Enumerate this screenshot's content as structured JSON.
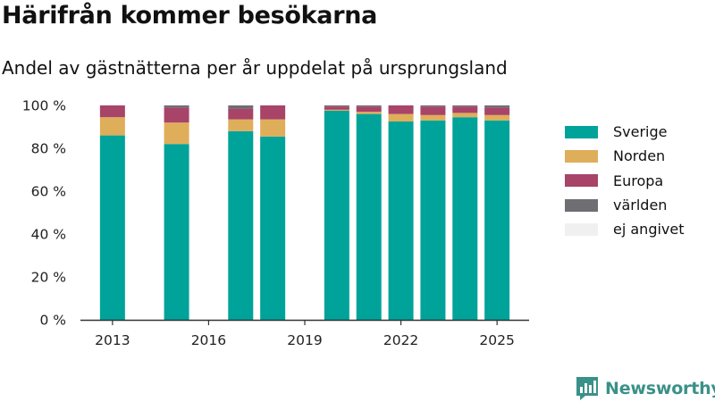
{
  "title": "Härifrån kommer besökarna",
  "subtitle": "Andel av gästnätterna per år uppdelat på ursprungsland",
  "brand": "Newsworthy",
  "colors": {
    "Sverige": "#00a39a",
    "Norden": "#dfae5a",
    "Europa": "#a84468",
    "världen": "#6e6e73",
    "ej angivet": "#f0f0f0"
  },
  "chart_data": {
    "type": "bar",
    "stacked": true,
    "categories": [
      "2013",
      "2015",
      "2017",
      "2018",
      "2020",
      "2021",
      "2022",
      "2023",
      "2024",
      "2025"
    ],
    "series": [
      {
        "name": "Sverige",
        "values": [
          86,
          82,
          88,
          85.5,
          97.5,
          96,
          92.5,
          93,
          94.5,
          93
        ]
      },
      {
        "name": "Norden",
        "values": [
          8.5,
          10,
          5.5,
          8,
          0.5,
          1,
          3.5,
          2.5,
          2,
          2.5
        ]
      },
      {
        "name": "Europa",
        "values": [
          5.5,
          7,
          5,
          6.5,
          1.5,
          2.5,
          4,
          4,
          3,
          3.5
        ]
      },
      {
        "name": "världen",
        "values": [
          0,
          1,
          1.5,
          0,
          0.5,
          0.5,
          0,
          0.5,
          0.5,
          1
        ]
      },
      {
        "name": "ej angivet",
        "values": [
          0,
          0,
          0,
          0,
          0,
          0,
          0,
          0,
          0,
          0
        ]
      }
    ],
    "x_ticks": [
      "2013",
      "2016",
      "2019",
      "2022",
      "2025"
    ],
    "y_ticks": [
      "0 %",
      "20 %",
      "40 %",
      "60 %",
      "80 %",
      "100 %"
    ],
    "ylim": [
      0,
      100
    ],
    "xlim": [
      2012,
      2026
    ],
    "grid": false,
    "legend_position": "right"
  }
}
